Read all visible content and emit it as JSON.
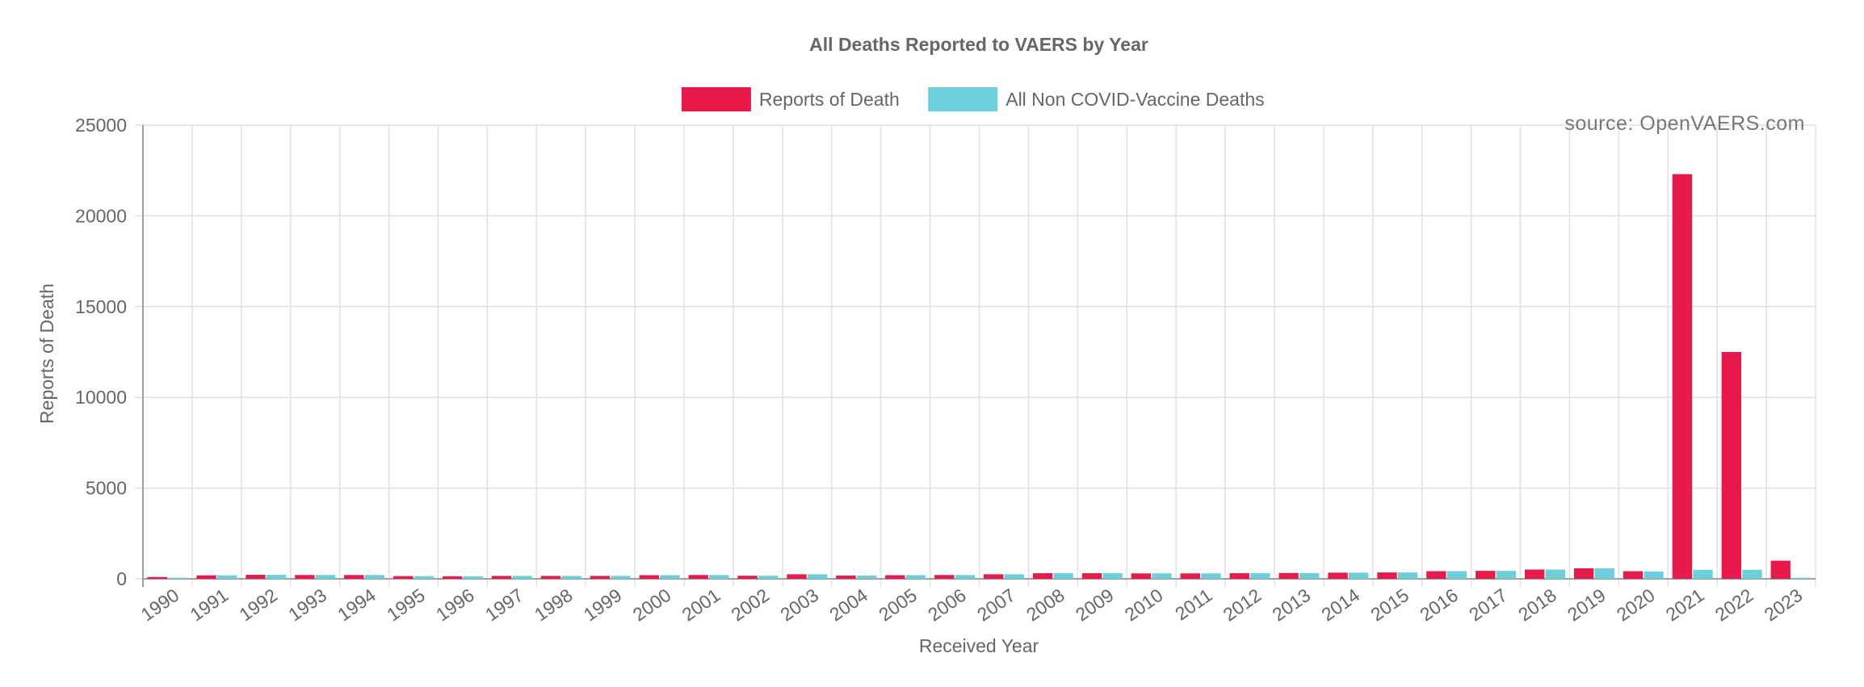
{
  "chart_data": {
    "type": "bar",
    "title": "All Deaths Reported to VAERS by Year",
    "xlabel": "Received Year",
    "ylabel": "Reports of Death",
    "watermark": "source: OpenVAERS.com",
    "ylim": [
      0,
      25000
    ],
    "yticks": [
      0,
      5000,
      10000,
      15000,
      20000,
      25000
    ],
    "grid": true,
    "legend_position": "top",
    "categories": [
      "1990",
      "1991",
      "1992",
      "1993",
      "1994",
      "1995",
      "1996",
      "1997",
      "1998",
      "1999",
      "2000",
      "2001",
      "2002",
      "2003",
      "2004",
      "2005",
      "2006",
      "2007",
      "2008",
      "2009",
      "2010",
      "2011",
      "2012",
      "2013",
      "2014",
      "2015",
      "2016",
      "2017",
      "2018",
      "2019",
      "2020",
      "2021",
      "2022",
      "2023"
    ],
    "series": [
      {
        "name": "Reports of Death",
        "color": "#e8194b",
        "values": [
          100,
          190,
          220,
          210,
          210,
          150,
          140,
          160,
          160,
          160,
          200,
          210,
          170,
          250,
          180,
          200,
          210,
          250,
          310,
          310,
          300,
          300,
          310,
          320,
          340,
          350,
          420,
          440,
          510,
          580,
          420,
          22300,
          12500,
          1000
        ]
      },
      {
        "name": "All Non COVID-Vaccine Deaths",
        "color": "#6ccfd9",
        "values": [
          60,
          190,
          220,
          210,
          210,
          150,
          140,
          160,
          160,
          160,
          200,
          210,
          170,
          250,
          180,
          200,
          210,
          250,
          310,
          310,
          300,
          300,
          310,
          320,
          340,
          350,
          420,
          440,
          510,
          580,
          400,
          500,
          500,
          60
        ]
      }
    ]
  }
}
